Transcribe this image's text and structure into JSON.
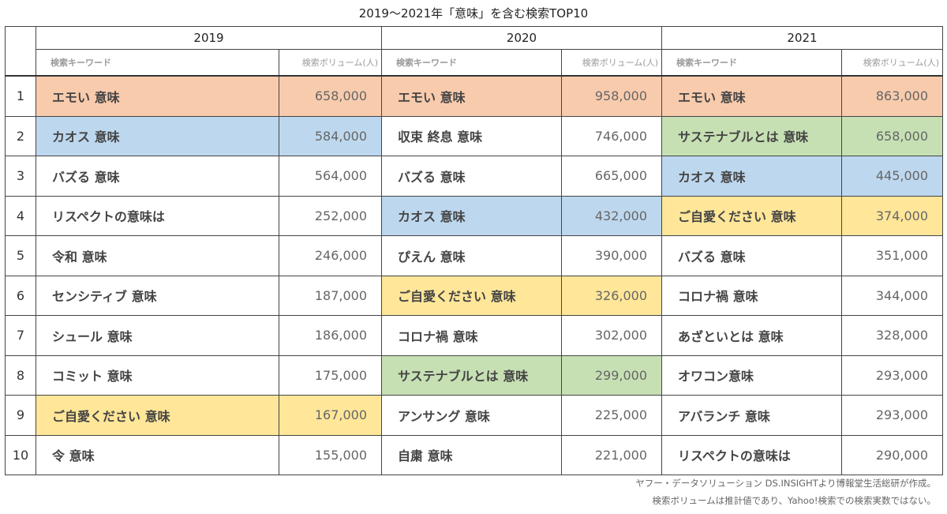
{
  "title": "2019〜2021年「意味」を含む検索TOP10",
  "years": [
    "2019",
    "2020",
    "2021"
  ],
  "col_keyword": "検索キーワード",
  "col_volume": "検索ボリューム(人)",
  "colors": {
    "orange": "#f8cbad",
    "blue": "#bdd7ee",
    "green": "#c6e0b4",
    "yellow": "#ffe699"
  },
  "rows": [
    {
      "rank": "1",
      "cells": [
        {
          "k": "エモい 意味",
          "v": "658,000",
          "c": "orange"
        },
        {
          "k": "エモい 意味",
          "v": "958,000",
          "c": "orange"
        },
        {
          "k": "エモい 意味",
          "v": "863,000",
          "c": "orange"
        }
      ]
    },
    {
      "rank": "2",
      "cells": [
        {
          "k": "カオス 意味",
          "v": "584,000",
          "c": "blue"
        },
        {
          "k": "収束 終息 意味",
          "v": "746,000",
          "c": ""
        },
        {
          "k": "サステナブルとは 意味",
          "v": "658,000",
          "c": "green"
        }
      ]
    },
    {
      "rank": "3",
      "cells": [
        {
          "k": "バズる 意味",
          "v": "564,000",
          "c": ""
        },
        {
          "k": "バズる 意味",
          "v": "665,000",
          "c": ""
        },
        {
          "k": "カオス 意味",
          "v": "445,000",
          "c": "blue"
        }
      ]
    },
    {
      "rank": "4",
      "cells": [
        {
          "k": "リスペクトの意味は",
          "v": "252,000",
          "c": ""
        },
        {
          "k": "カオス 意味",
          "v": "432,000",
          "c": "blue"
        },
        {
          "k": "ご自愛ください 意味",
          "v": "374,000",
          "c": "yellow"
        }
      ]
    },
    {
      "rank": "5",
      "cells": [
        {
          "k": "令和 意味",
          "v": "246,000",
          "c": ""
        },
        {
          "k": "ぴえん 意味",
          "v": "390,000",
          "c": ""
        },
        {
          "k": "バズる 意味",
          "v": "351,000",
          "c": ""
        }
      ]
    },
    {
      "rank": "6",
      "cells": [
        {
          "k": "センシティブ 意味",
          "v": "187,000",
          "c": ""
        },
        {
          "k": "ご自愛ください 意味",
          "v": "326,000",
          "c": "yellow"
        },
        {
          "k": "コロナ禍 意味",
          "v": "344,000",
          "c": ""
        }
      ]
    },
    {
      "rank": "7",
      "cells": [
        {
          "k": "シュール 意味",
          "v": "186,000",
          "c": ""
        },
        {
          "k": "コロナ禍 意味",
          "v": "302,000",
          "c": ""
        },
        {
          "k": "あざといとは 意味",
          "v": "328,000",
          "c": ""
        }
      ]
    },
    {
      "rank": "8",
      "cells": [
        {
          "k": "コミット 意味",
          "v": "175,000",
          "c": ""
        },
        {
          "k": "サステナブルとは 意味",
          "v": "299,000",
          "c": "green"
        },
        {
          "k": "オワコン意味",
          "v": "293,000",
          "c": ""
        }
      ]
    },
    {
      "rank": "9",
      "cells": [
        {
          "k": "ご自愛ください 意味",
          "v": "167,000",
          "c": "yellow"
        },
        {
          "k": "アンサング 意味",
          "v": "225,000",
          "c": ""
        },
        {
          "k": "アバランチ 意味",
          "v": "293,000",
          "c": ""
        }
      ]
    },
    {
      "rank": "10",
      "cells": [
        {
          "k": "令 意味",
          "v": "155,000",
          "c": ""
        },
        {
          "k": "自粛 意味",
          "v": "221,000",
          "c": ""
        },
        {
          "k": "リスペクトの意味は",
          "v": "290,000",
          "c": ""
        }
      ]
    }
  ],
  "notes": [
    "ヤフー・データソリューション DS.INSIGHTより博報堂生活総研が作成。",
    "検索ボリュームは推計値であり、Yahoo!検索での検索実数ではない。"
  ]
}
